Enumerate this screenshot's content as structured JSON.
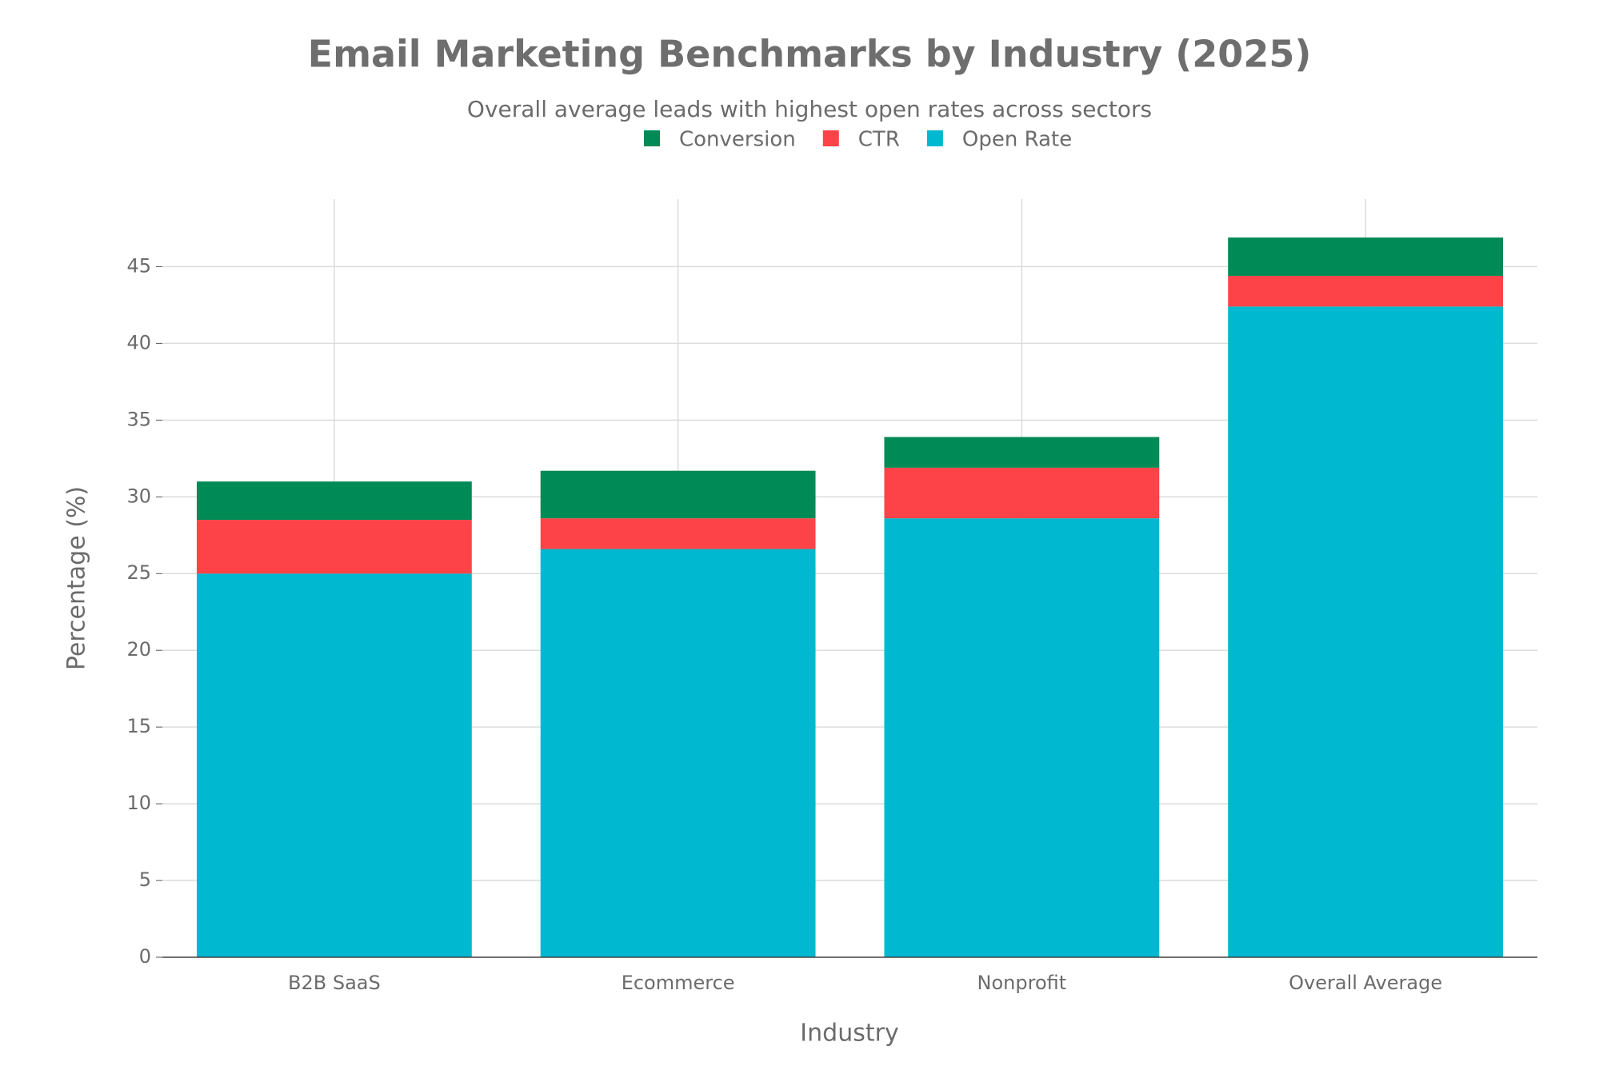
{
  "chart_data": {
    "type": "stacked_bar",
    "title": "Email Marketing Benchmarks by Industry (2025)",
    "subtitle": "Overall average leads with highest open rates across sectors",
    "x_label": "Industry",
    "y_label": "Percentage (%)",
    "categories": [
      "B2B SaaS",
      "Ecommerce",
      "Nonprofit",
      "Overall Average"
    ],
    "series": [
      {
        "name": "Open Rate",
        "color": "#00b8cf",
        "values": [
          25.0,
          26.6,
          28.6,
          42.4
        ]
      },
      {
        "name": "CTR",
        "color": "#fd4347",
        "values": [
          3.5,
          2.0,
          3.3,
          2.0
        ]
      },
      {
        "name": "Conversion",
        "color": "#008a55",
        "values": [
          2.5,
          3.1,
          2.0,
          2.5
        ]
      }
    ],
    "ylim": [
      0,
      49.4
    ],
    "yticks": [
      0,
      5,
      10,
      15,
      20,
      25,
      30,
      35,
      40,
      45
    ],
    "grid": true
  }
}
